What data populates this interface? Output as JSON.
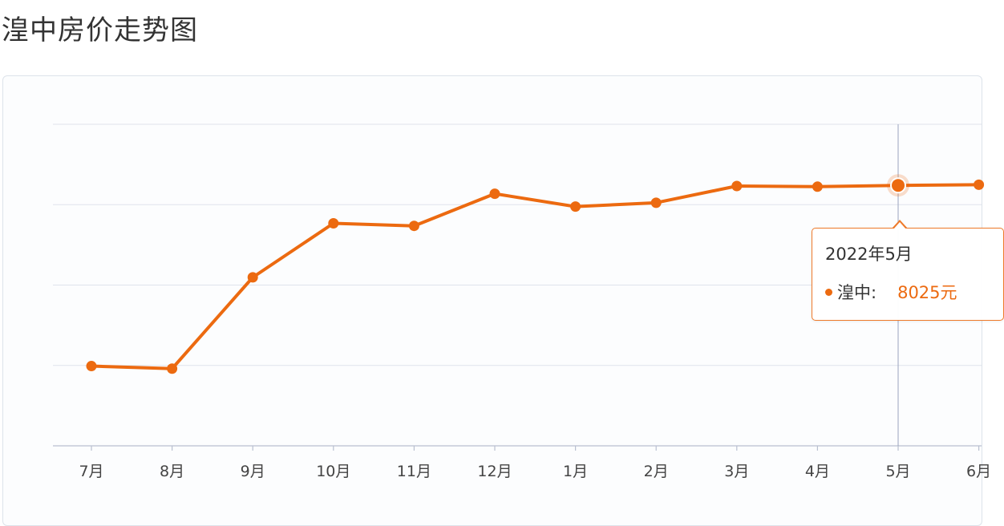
{
  "page": {
    "title": "湟中房价走势图"
  },
  "colors": {
    "series": "#ec6a10",
    "grid": "#dfe3ec",
    "axis": "#b9c0d0",
    "crosshair": "#9aa3bd"
  },
  "tooltip": {
    "title": "2022年5月",
    "series_name": "湟中:",
    "value": "8025元"
  },
  "chart_data": {
    "type": "line",
    "categories": [
      "7月",
      "8月",
      "9月",
      "10月",
      "11月",
      "12月",
      "1月",
      "2月",
      "3月",
      "4月",
      "5月",
      "6月"
    ],
    "series": [
      {
        "name": "湟中",
        "values": [
          6620,
          6600,
          7310,
          7730,
          7710,
          7960,
          7860,
          7890,
          8020,
          8015,
          8025,
          8030
        ]
      }
    ],
    "title": "湟中房价走势图",
    "xlabel": "",
    "ylabel": "",
    "ylim": [
      6000,
      8500
    ],
    "grid": true,
    "highlight_index": 10
  }
}
